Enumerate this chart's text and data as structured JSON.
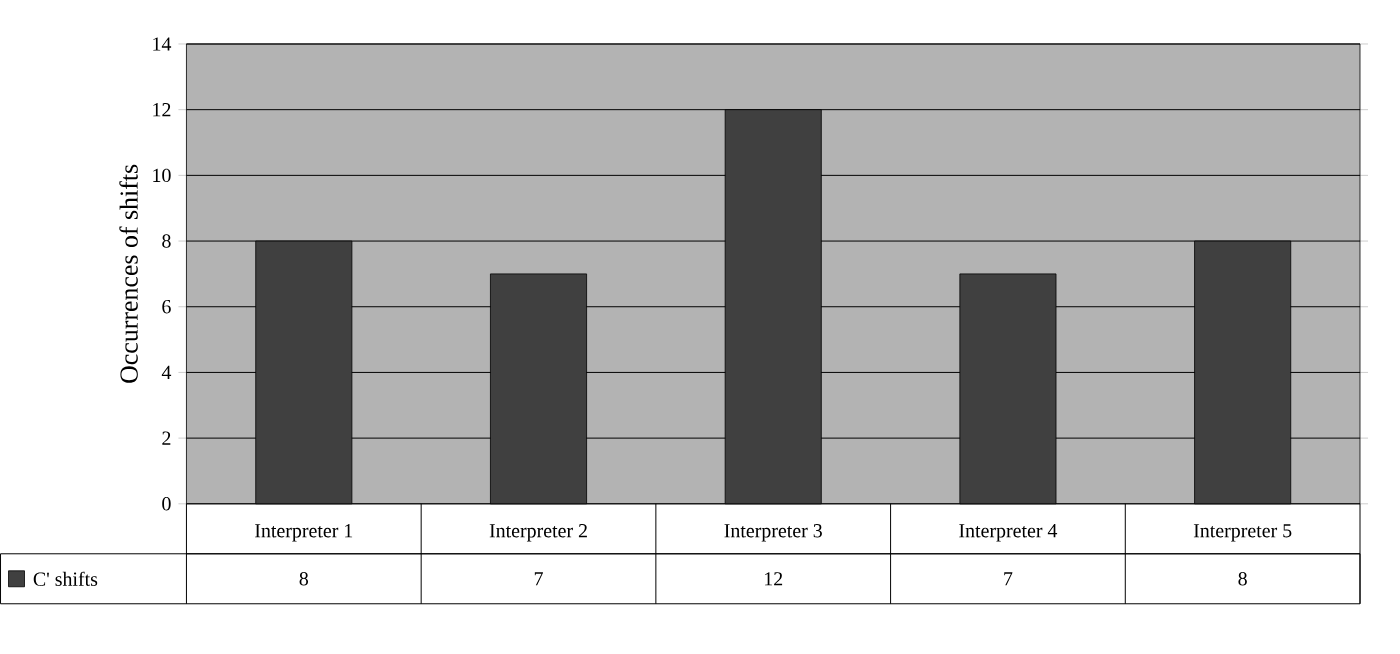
{
  "chart_data": {
    "type": "bar",
    "ylabel": "Occurrences of shifts",
    "categories": [
      "Interpreter 1",
      "Interpreter 2",
      "Interpreter 3",
      "Interpreter 4",
      "Interpreter 5"
    ],
    "series": [
      {
        "name": "C' shifts",
        "color": "#404040",
        "values": [
          8,
          7,
          12,
          7,
          8
        ]
      }
    ],
    "ylim": [
      0,
      14
    ],
    "yticks": [
      0,
      2,
      4,
      6,
      8,
      10,
      12,
      14
    ],
    "grid": "y",
    "data_labels": true,
    "legend": "bottom left"
  }
}
